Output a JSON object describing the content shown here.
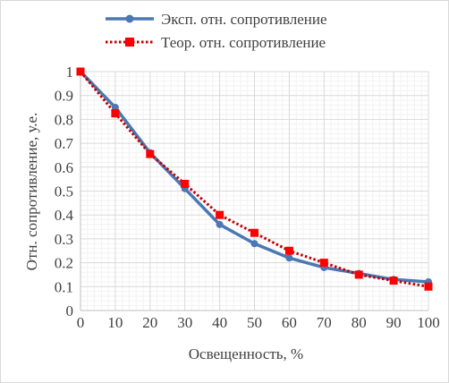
{
  "chart_data": {
    "type": "line",
    "xlabel": "Освещенность, %",
    "ylabel": "Отн. сопротивление, у.е.",
    "x": [
      0,
      10,
      20,
      30,
      40,
      50,
      60,
      70,
      80,
      90,
      100
    ],
    "xlim": [
      0,
      100
    ],
    "ylim": [
      0,
      1
    ],
    "x_ticks": [
      "0",
      "10",
      "20",
      "30",
      "40",
      "50",
      "60",
      "70",
      "80",
      "90",
      "100"
    ],
    "y_ticks": [
      "0",
      "0.1",
      "0.2",
      "0.3",
      "0.4",
      "0.5",
      "0.6",
      "0.7",
      "0.8",
      "0.9",
      "1"
    ],
    "grid": true,
    "legend_position": "top",
    "series": [
      {
        "name": "Эксп. отн. сопротивление",
        "values": [
          1.0,
          0.85,
          0.66,
          0.51,
          0.36,
          0.28,
          0.22,
          0.18,
          0.155,
          0.13,
          0.12
        ],
        "color": "#4a78b5",
        "line_style": "solid",
        "marker": "circle"
      },
      {
        "name": "Теор. отн. сопротивление",
        "values": [
          1.0,
          0.825,
          0.655,
          0.53,
          0.4,
          0.325,
          0.25,
          0.2,
          0.15,
          0.125,
          0.1
        ],
        "color": "#c00000",
        "marker_color": "#ff0000",
        "line_style": "dotted",
        "marker": "square"
      }
    ]
  }
}
